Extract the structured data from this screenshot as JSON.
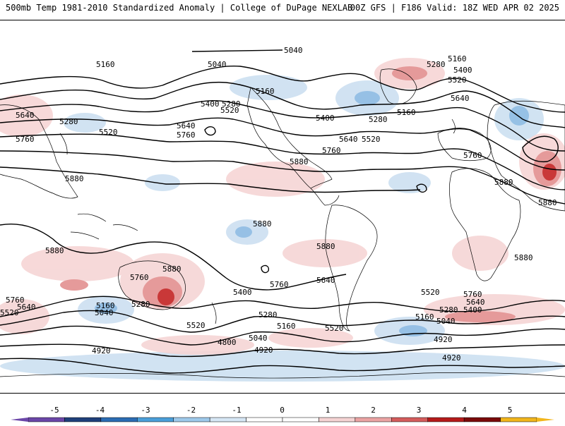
{
  "header": {
    "left": "500mb Temp 1981-2010 Standardized Anomaly | College of DuPage NEXLAB",
    "right": "00Z GFS | F186 Valid: 18Z WED APR 02 2025"
  },
  "map": {
    "contour_labels": [
      {
        "text": "5040",
        "tag": "north-pole-5040"
      },
      {
        "text": "5160",
        "tag": "nw-pacific-5160"
      },
      {
        "text": "5040",
        "tag": "north-pacific-5040"
      },
      {
        "text": "5160",
        "tag": "alaska-5160"
      },
      {
        "text": "5400",
        "tag": "pacific-5400"
      },
      {
        "text": "5280",
        "tag": "pacific-5280"
      },
      {
        "text": "5520",
        "tag": "pacific-5520"
      },
      {
        "text": "5640",
        "tag": "pacific-5640"
      },
      {
        "text": "5760",
        "tag": "pacific-5760"
      },
      {
        "text": "5640",
        "tag": "west-5640"
      },
      {
        "text": "5280",
        "tag": "west-5280"
      },
      {
        "text": "5520",
        "tag": "west-5520"
      },
      {
        "text": "5760",
        "tag": "west-5760"
      },
      {
        "text": "5880",
        "tag": "west-5880"
      },
      {
        "text": "5400",
        "tag": "us-5400"
      },
      {
        "text": "5280",
        "tag": "canada-5280"
      },
      {
        "text": "5160",
        "tag": "canada-5160"
      },
      {
        "text": "5640",
        "tag": "us-east-5640"
      },
      {
        "text": "5520",
        "tag": "us-east-5520"
      },
      {
        "text": "5760",
        "tag": "gulf-5760"
      },
      {
        "text": "5880",
        "tag": "mexico-5880"
      },
      {
        "text": "5160",
        "tag": "greenland-5160"
      },
      {
        "text": "5280",
        "tag": "greenland-5280"
      },
      {
        "text": "5400",
        "tag": "atlantic-5400"
      },
      {
        "text": "5520",
        "tag": "atlantic-5520"
      },
      {
        "text": "5640",
        "tag": "europe-5640"
      },
      {
        "text": "5760",
        "tag": "europe-5760"
      },
      {
        "text": "5880",
        "tag": "africa-5880-n"
      },
      {
        "text": "5880",
        "tag": "africa-5880-e"
      },
      {
        "text": "5880",
        "tag": "africa-5880-s"
      },
      {
        "text": "5880",
        "tag": "sa-5880-n"
      },
      {
        "text": "5880",
        "tag": "sa-5880-e"
      },
      {
        "text": "5880",
        "tag": "aus-5880-w"
      },
      {
        "text": "5880",
        "tag": "aus-5880-e"
      },
      {
        "text": "5760",
        "tag": "aus-5760"
      },
      {
        "text": "5760",
        "tag": "sh-west-5760"
      },
      {
        "text": "5640",
        "tag": "sh-west-5640"
      },
      {
        "text": "5520",
        "tag": "sh-west-5520"
      },
      {
        "text": "5400",
        "tag": "sh-5400-a"
      },
      {
        "text": "5280",
        "tag": "sh-5280-a"
      },
      {
        "text": "5160",
        "tag": "sh-5160-a"
      },
      {
        "text": "5040",
        "tag": "sh-5040-a"
      },
      {
        "text": "5520",
        "tag": "sh-5520-a"
      },
      {
        "text": "4920",
        "tag": "sh-4920-a"
      },
      {
        "text": "4800",
        "tag": "sh-4800"
      },
      {
        "text": "5040",
        "tag": "sh-5040-b"
      },
      {
        "text": "4920",
        "tag": "sh-4920-b"
      },
      {
        "text": "5400",
        "tag": "sh-5400-b"
      },
      {
        "text": "5280",
        "tag": "sh-5280-b"
      },
      {
        "text": "5160",
        "tag": "sh-5160-b"
      },
      {
        "text": "5520",
        "tag": "sh-5520-b"
      },
      {
        "text": "5760",
        "tag": "sh-5760-c"
      },
      {
        "text": "5640",
        "tag": "sh-5640-c"
      },
      {
        "text": "5520",
        "tag": "sh-5520-c"
      },
      {
        "text": "5760",
        "tag": "sh-5760-d"
      },
      {
        "text": "5640",
        "tag": "sh-5640-d"
      },
      {
        "text": "5400",
        "tag": "sh-5400-d"
      },
      {
        "text": "5280",
        "tag": "sh-5280-d"
      },
      {
        "text": "5160",
        "tag": "sh-5160-d"
      },
      {
        "text": "5040",
        "tag": "sh-5040-d"
      },
      {
        "text": "4920",
        "tag": "sh-4920-d"
      },
      {
        "text": "4920",
        "tag": "sh-4920-e"
      }
    ]
  },
  "colorbar": {
    "ticks": [
      "-5",
      "-4",
      "-3",
      "-2",
      "-1",
      "0",
      "1",
      "2",
      "3",
      "4",
      "5"
    ],
    "colors": [
      "#6b46a8",
      "#1f3f7a",
      "#2b6cb3",
      "#4a9fd9",
      "#9ec9ea",
      "#d6e7f5",
      "#ffffff",
      "#ffffff",
      "#f5d3d3",
      "#eba3a3",
      "#d45c5c",
      "#b51a1a",
      "#7a0a0a",
      "#f2b61c"
    ]
  }
}
